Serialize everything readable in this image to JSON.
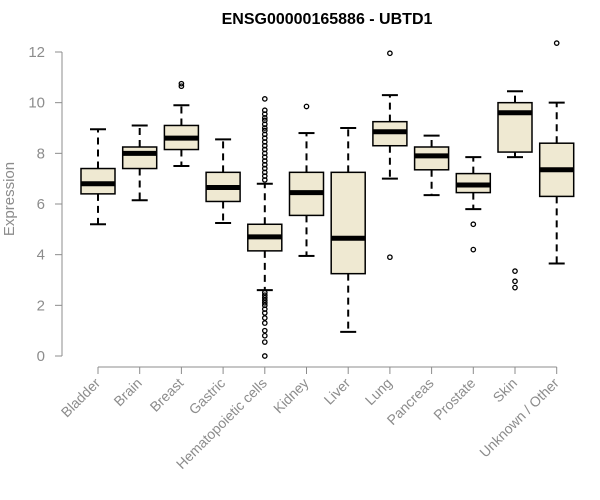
{
  "chart_data": {
    "type": "boxplot",
    "title": "ENSG00000165886 - UBTD1",
    "xlabel": "",
    "ylabel": "Expression",
    "ylim": [
      0,
      12.4
    ],
    "yticks": [
      0,
      2,
      4,
      6,
      8,
      10,
      12
    ],
    "grid": false,
    "legend": "none",
    "box_fill": "#efe9d2",
    "box_stroke": "#000000",
    "median_color": "#000000",
    "categories": [
      "Bladder",
      "Brain",
      "Breast",
      "Gastric",
      "Hematopoietic cells",
      "Kidney",
      "Liver",
      "Lung",
      "Pancreas",
      "Prostate",
      "Skin",
      "Unknown / Other"
    ],
    "boxes": [
      {
        "category": "Bladder",
        "whisker_low": 5.2,
        "q1": 6.4,
        "median": 6.8,
        "q3": 7.4,
        "whisker_high": 8.95,
        "outliers": []
      },
      {
        "category": "Brain",
        "whisker_low": 6.15,
        "q1": 7.4,
        "median": 8.0,
        "q3": 8.25,
        "whisker_high": 9.1,
        "outliers": []
      },
      {
        "category": "Breast",
        "whisker_low": 7.5,
        "q1": 8.15,
        "median": 8.6,
        "q3": 9.1,
        "whisker_high": 9.9,
        "outliers": [
          10.65,
          10.75
        ]
      },
      {
        "category": "Gastric",
        "whisker_low": 5.25,
        "q1": 6.1,
        "median": 6.65,
        "q3": 7.25,
        "whisker_high": 8.55,
        "outliers": []
      },
      {
        "category": "Hematopoietic cells",
        "whisker_low": 2.6,
        "q1": 4.15,
        "median": 4.7,
        "q3": 5.2,
        "whisker_high": 6.8,
        "outliers": [
          10.15,
          9.7,
          9.55,
          9.4,
          9.3,
          9.15,
          9.0,
          8.9,
          8.75,
          8.6,
          8.45,
          8.3,
          8.15,
          8.0,
          7.85,
          7.7,
          7.55,
          7.4,
          7.25,
          7.1,
          6.95,
          2.5,
          2.4,
          2.3,
          2.2,
          2.1,
          2.0,
          1.85,
          1.7,
          1.5,
          1.3,
          1.0,
          0.8,
          0.55,
          0.0
        ]
      },
      {
        "category": "Kidney",
        "whisker_low": 3.95,
        "q1": 5.55,
        "median": 6.45,
        "q3": 7.25,
        "whisker_high": 8.8,
        "outliers": [
          9.85
        ]
      },
      {
        "category": "Liver",
        "whisker_low": 0.95,
        "q1": 3.25,
        "median": 4.65,
        "q3": 7.25,
        "whisker_high": 9.0,
        "outliers": []
      },
      {
        "category": "Lung",
        "whisker_low": 7.0,
        "q1": 8.3,
        "median": 8.85,
        "q3": 9.25,
        "whisker_high": 10.3,
        "outliers": [
          11.95,
          3.9
        ]
      },
      {
        "category": "Pancreas",
        "whisker_low": 6.35,
        "q1": 7.35,
        "median": 7.9,
        "q3": 8.25,
        "whisker_high": 8.7,
        "outliers": []
      },
      {
        "category": "Prostate",
        "whisker_low": 5.8,
        "q1": 6.45,
        "median": 6.75,
        "q3": 7.2,
        "whisker_high": 7.85,
        "outliers": [
          5.2,
          4.2
        ]
      },
      {
        "category": "Skin",
        "whisker_low": 7.85,
        "q1": 8.05,
        "median": 9.6,
        "q3": 10.0,
        "whisker_high": 10.45,
        "outliers": [
          3.35,
          2.95,
          2.7
        ]
      },
      {
        "category": "Unknown / Other",
        "whisker_low": 3.65,
        "q1": 6.3,
        "median": 7.35,
        "q3": 8.4,
        "whisker_high": 10.0,
        "outliers": [
          12.35
        ]
      }
    ]
  }
}
